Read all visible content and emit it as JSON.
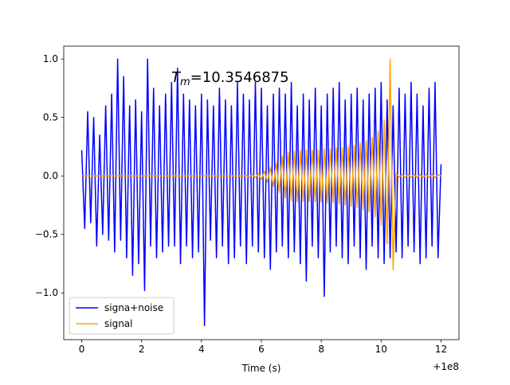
{
  "chart_data": {
    "type": "line",
    "annotation": {
      "symbol": "T",
      "subscript": "m",
      "text": "=10.3546875"
    },
    "xlabel": "Time (s)",
    "x_offset_label": "+1e8",
    "x": [
      0,
      0.1,
      0.2,
      0.3,
      0.4,
      0.5,
      0.6,
      0.7,
      0.8,
      0.9,
      1,
      1.1,
      1.2,
      1.3,
      1.4,
      1.5,
      1.6,
      1.7,
      1.8,
      1.9,
      2,
      2.1,
      2.2,
      2.3,
      2.4,
      2.5,
      2.6,
      2.7,
      2.8,
      2.9,
      3,
      3.1,
      3.2,
      3.3,
      3.4,
      3.5,
      3.6,
      3.7,
      3.8,
      3.9,
      4,
      4.1,
      4.2,
      4.3,
      4.4,
      4.5,
      4.6,
      4.7,
      4.8,
      4.9,
      5,
      5.1,
      5.2,
      5.3,
      5.4,
      5.5,
      5.6,
      5.7,
      5.8,
      5.9,
      6,
      6.1,
      6.2,
      6.3,
      6.4,
      6.5,
      6.6,
      6.7,
      6.8,
      6.9,
      7,
      7.1,
      7.2,
      7.3,
      7.4,
      7.5,
      7.6,
      7.7,
      7.8,
      7.9,
      8,
      8.1,
      8.2,
      8.3,
      8.4,
      8.5,
      8.6,
      8.7,
      8.8,
      8.9,
      9,
      9.1,
      9.2,
      9.3,
      9.4,
      9.5,
      9.6,
      9.7,
      9.8,
      9.9,
      10,
      10.1,
      10.2,
      10.3,
      10.4,
      10.5,
      10.6,
      10.7,
      10.8,
      10.9,
      11,
      11.1,
      11.2,
      11.3,
      11.4,
      11.5,
      11.6,
      11.7,
      11.8,
      11.9,
      12
    ],
    "series": [
      {
        "name": "signa+noise",
        "color": "#0000ff",
        "values": [
          0.22,
          -0.45,
          0.55,
          -0.4,
          0.5,
          -0.6,
          0.35,
          -0.5,
          0.6,
          -0.55,
          0.7,
          -0.65,
          1.0,
          -0.55,
          0.85,
          -0.7,
          0.6,
          -0.85,
          0.65,
          -0.75,
          0.55,
          -0.98,
          1.0,
          -0.6,
          0.75,
          -0.7,
          0.6,
          -0.65,
          0.7,
          -0.6,
          0.8,
          -0.6,
          0.92,
          -0.75,
          0.7,
          -0.6,
          0.65,
          -0.7,
          0.6,
          -0.65,
          0.7,
          -1.28,
          0.65,
          -0.55,
          0.6,
          -0.7,
          0.75,
          -0.6,
          0.65,
          -0.75,
          0.6,
          -0.7,
          0.8,
          -0.6,
          0.7,
          -0.75,
          0.65,
          -0.6,
          0.8,
          -0.65,
          0.75,
          -0.7,
          0.6,
          -0.8,
          0.7,
          -0.65,
          0.75,
          -0.6,
          0.7,
          -0.7,
          0.8,
          -0.65,
          0.6,
          -0.75,
          0.7,
          -0.9,
          0.65,
          -0.6,
          0.75,
          -0.7,
          0.6,
          -1.03,
          0.7,
          -0.65,
          0.75,
          -0.6,
          0.8,
          -0.7,
          0.65,
          -0.75,
          0.7,
          -0.6,
          0.75,
          -0.7,
          0.65,
          -0.8,
          0.7,
          -0.6,
          0.75,
          -0.7,
          0.8,
          -0.75,
          0.65,
          -0.7,
          0.6,
          -0.65,
          0.75,
          -0.7,
          0.7,
          -0.6,
          0.8,
          -0.65,
          0.7,
          -0.75,
          0.6,
          -0.7,
          0.75,
          -0.6,
          0.8,
          -0.7,
          0.1
        ]
      },
      {
        "name": "signal",
        "color": "#ffa500",
        "values": [
          0,
          0,
          0,
          0,
          0,
          0,
          0,
          0,
          0,
          0,
          0,
          0,
          0,
          0,
          0,
          0,
          0,
          0,
          0,
          0,
          0,
          0,
          0,
          0,
          0,
          0,
          0,
          0,
          0,
          0,
          0,
          0,
          0,
          0,
          0,
          0,
          0,
          0,
          0,
          0,
          0,
          0,
          0,
          0,
          0,
          0,
          0,
          0,
          0,
          0,
          0,
          0,
          0,
          0,
          0,
          0.005,
          -0.008,
          0.01,
          -0.015,
          0.02,
          -0.03,
          0.04,
          -0.05,
          0.07,
          -0.09,
          0.11,
          -0.14,
          0.17,
          -0.19,
          0.2,
          -0.21,
          0.21,
          -0.22,
          0.22,
          -0.22,
          0.22,
          -0.22,
          0.22,
          -0.22,
          0.22,
          -0.22,
          0.23,
          -0.23,
          0.23,
          -0.23,
          0.24,
          -0.24,
          0.24,
          -0.25,
          0.25,
          -0.26,
          0.26,
          -0.27,
          0.28,
          -0.29,
          0.3,
          -0.31,
          0.33,
          -0.35,
          0.38,
          -0.42,
          0.48,
          -0.58,
          1.0,
          -0.8,
          0.02,
          -0.01,
          0.01,
          -0.01,
          0.01,
          -0.01,
          0.01,
          -0.01,
          0.01,
          -0.01,
          0.01,
          -0.01,
          0.01,
          -0.01,
          0.01,
          0
        ]
      }
    ],
    "xlim": [
      -0.6,
      12.6
    ],
    "ylim": [
      -1.4,
      1.11
    ],
    "xticks": [
      0,
      2,
      4,
      6,
      8,
      10,
      12
    ],
    "yticks": [
      {
        "value": -1.0,
        "label": "−1.0"
      },
      {
        "value": -0.5,
        "label": "−0.5"
      },
      {
        "value": 0,
        "label": "0.0"
      },
      {
        "value": 0.5,
        "label": "0.5"
      },
      {
        "value": 1.0,
        "label": "1.0"
      }
    ],
    "grid": false,
    "legend": "lower left"
  }
}
